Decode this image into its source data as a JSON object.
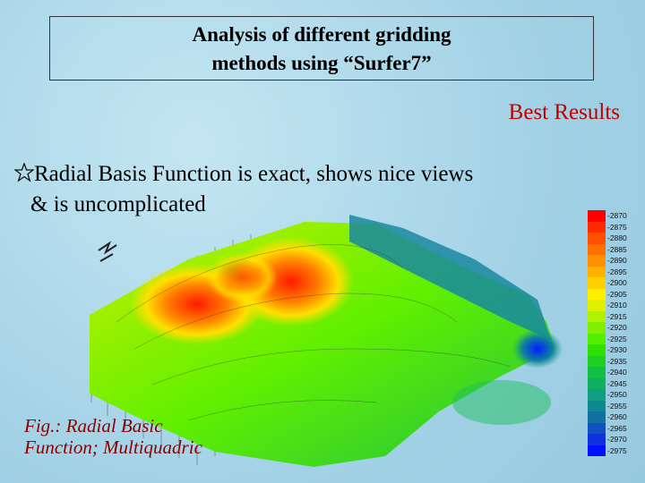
{
  "header": {
    "title_lines": [
      "Analysis of different gridding",
      "methods using “Surfer7”"
    ]
  },
  "tag": "Best Results",
  "bullet": {
    "lines": [
      "Radial Basis Function is exact, shows nice views",
      "& is uncomplicated"
    ]
  },
  "figure": {
    "caption_lines": [
      "Fig.: Radial Basic",
      "Function; Multiquadric"
    ],
    "legend": [
      {
        "label": -2870,
        "color": "#ff0000"
      },
      {
        "label": -2875,
        "color": "#ff2a00"
      },
      {
        "label": -2880,
        "color": "#ff5000"
      },
      {
        "label": -2885,
        "color": "#ff7000"
      },
      {
        "label": -2890,
        "color": "#ff9000"
      },
      {
        "label": -2895,
        "color": "#ffb000"
      },
      {
        "label": -2900,
        "color": "#ffd000"
      },
      {
        "label": -2905,
        "color": "#fff000"
      },
      {
        "label": -2910,
        "color": "#e0f000"
      },
      {
        "label": -2915,
        "color": "#b0f000"
      },
      {
        "label": -2920,
        "color": "#80f000"
      },
      {
        "label": -2925,
        "color": "#50f000"
      },
      {
        "label": -2930,
        "color": "#30e000"
      },
      {
        "label": -2935,
        "color": "#20d020"
      },
      {
        "label": -2940,
        "color": "#10c040"
      },
      {
        "label": -2945,
        "color": "#10b060"
      },
      {
        "label": -2950,
        "color": "#10a080"
      },
      {
        "label": -2955,
        "color": "#108890"
      },
      {
        "label": -2960,
        "color": "#1070a0"
      },
      {
        "label": -2965,
        "color": "#1050c0"
      },
      {
        "label": -2970,
        "color": "#1030e0"
      },
      {
        "label": -2975,
        "color": "#0010ff"
      }
    ]
  }
}
